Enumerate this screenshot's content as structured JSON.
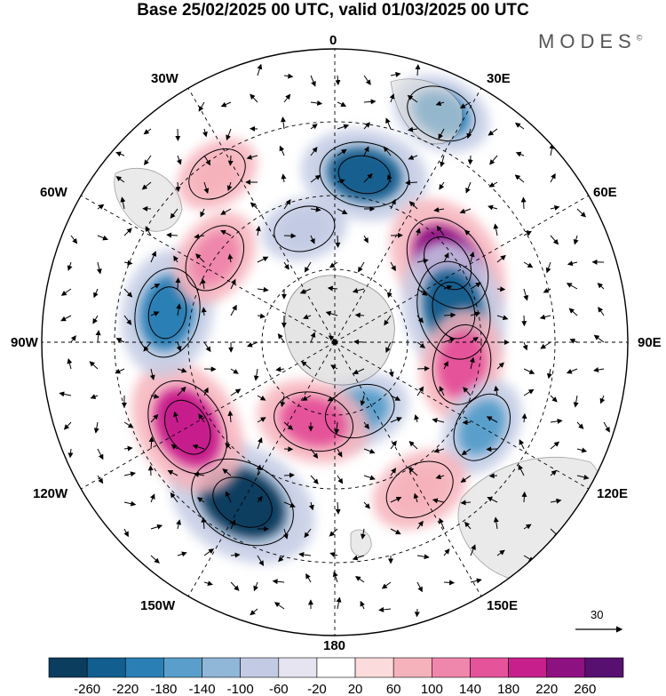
{
  "title": "Base 25/02/2025 00 UTC, valid 01/03/2025 00 UTC",
  "brand": "MODES",
  "brand_mark": "©",
  "longitude_labels": {
    "top": "0",
    "bottom": "180",
    "left": "90W",
    "right": "90E",
    "nw1": "30W",
    "nw2": "60W",
    "ne1": "30E",
    "ne2": "60E",
    "sw1": "120W",
    "sw2": "150W",
    "se1": "120E",
    "se2": "150E"
  },
  "reference_vector": {
    "value": "30"
  },
  "colorbar": {
    "colors": [
      "#0b3d5e",
      "#125e8e",
      "#2a7fb5",
      "#5a9fcb",
      "#90b6d8",
      "#c3cbe4",
      "#e6e4f1",
      "#ffffff",
      "#fbdbdc",
      "#f6b2bb",
      "#ef86ab",
      "#e5539a",
      "#c71f8c",
      "#8e1181",
      "#571070"
    ],
    "tick_labels": [
      "-260",
      "-220",
      "-180",
      "-140",
      "-100",
      "-60",
      "-20",
      "20",
      "60",
      "100",
      "140",
      "180",
      "220",
      "260"
    ]
  },
  "map": {
    "projection": "south-polar-stereographic",
    "field": "anomaly shading with vector wind arrows",
    "anomaly_centers": [
      {
        "lon": 10,
        "lat_ring": 0.58,
        "value": -180,
        "color": "#125e8e"
      },
      {
        "lon": 25,
        "lat_ring": 0.86,
        "value": -100,
        "color": "#2a7fb5"
      },
      {
        "lon": 55,
        "lat_ring": 0.47,
        "value": 220,
        "color": "#8e1181"
      },
      {
        "lon": 75,
        "lat_ring": 0.42,
        "value": -220,
        "color": "#125e8e"
      },
      {
        "lon": 100,
        "lat_ring": 0.44,
        "value": 140,
        "color": "#e5539a"
      },
      {
        "lon": 120,
        "lat_ring": 0.58,
        "value": -100,
        "color": "#5a9fcb"
      },
      {
        "lon": 150,
        "lat_ring": 0.58,
        "value": 100,
        "color": "#f6b2bb"
      },
      {
        "lon": 160,
        "lat_ring": 0.25,
        "value": -100,
        "color": "#5a9fcb"
      },
      {
        "lon": 195,
        "lat_ring": 0.28,
        "value": 140,
        "color": "#e5539a"
      },
      {
        "lon": 210,
        "lat_ring": 0.63,
        "value": -260,
        "color": "#0b3d5e"
      },
      {
        "lon": 240,
        "lat_ring": 0.58,
        "value": 220,
        "color": "#c71f8c"
      },
      {
        "lon": 280,
        "lat_ring": 0.58,
        "value": -180,
        "color": "#2a7fb5"
      },
      {
        "lon": 305,
        "lat_ring": 0.5,
        "value": 100,
        "color": "#ef86ab"
      },
      {
        "lon": 325,
        "lat_ring": 0.7,
        "value": 60,
        "color": "#f6b2bb"
      },
      {
        "lon": 345,
        "lat_ring": 0.4,
        "value": -60,
        "color": "#c3cbe4"
      }
    ]
  }
}
